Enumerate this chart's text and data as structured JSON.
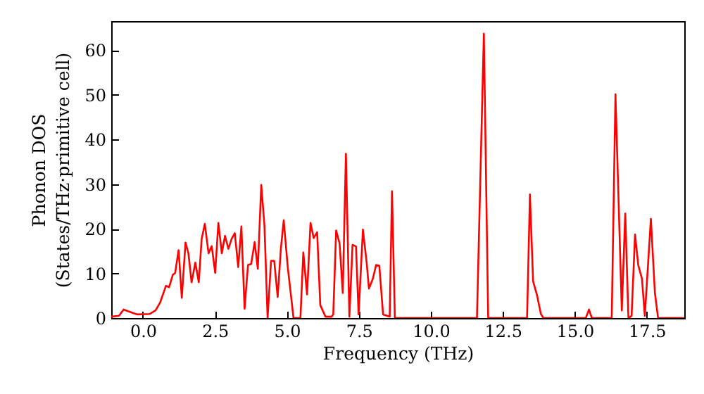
{
  "chart_data": {
    "type": "line",
    "xlabel": "Frequency (THz)",
    "ylabel": "Phonon DOS\n(States/THz·primitive cell)",
    "xlim": [
      -1.1,
      18.8
    ],
    "ylim": [
      0,
      66.5
    ],
    "xticks": [
      {
        "value": 0,
        "label": "0.0"
      },
      {
        "value": 2.5,
        "label": "2.5"
      },
      {
        "value": 5,
        "label": "5.0"
      },
      {
        "value": 7.5,
        "label": "7.5"
      },
      {
        "value": 10,
        "label": "10.0"
      },
      {
        "value": 12.5,
        "label": "12.5"
      },
      {
        "value": 15,
        "label": "15.0"
      },
      {
        "value": 17.5,
        "label": "17.5"
      }
    ],
    "yticks": [
      0,
      10,
      20,
      30,
      40,
      50,
      60
    ],
    "grid": false,
    "marker": "none",
    "line_style": "solid",
    "series": [
      {
        "color": "#ff0000",
        "x": [
          -1.1,
          -0.83,
          -0.67,
          -0.34,
          -0.18,
          0.23,
          0.44,
          0.6,
          0.8,
          0.91,
          1.04,
          1.12,
          1.24,
          1.35,
          1.48,
          1.58,
          1.69,
          1.82,
          1.94,
          2.04,
          2.15,
          2.28,
          2.39,
          2.51,
          2.62,
          2.74,
          2.85,
          2.97,
          3.08,
          3.19,
          3.31,
          3.42,
          3.53,
          3.65,
          3.76,
          3.88,
          3.99,
          4.11,
          4.22,
          4.33,
          4.45,
          4.56,
          4.68,
          4.79,
          4.89,
          5.03,
          5.23,
          5.47,
          5.57,
          5.7,
          5.82,
          5.93,
          6.05,
          6.16,
          6.34,
          6.55,
          6.61,
          6.71,
          6.83,
          6.94,
          7.05,
          7.17,
          7.28,
          7.4,
          7.49,
          7.64,
          7.77,
          7.85,
          7.98,
          8.1,
          8.21,
          8.34,
          8.57,
          8.65,
          8.75,
          11.6,
          11.84,
          11.99,
          13.34,
          13.44,
          13.55,
          13.69,
          13.82,
          13.91,
          15.38,
          15.49,
          15.59,
          16.28,
          16.41,
          16.63,
          16.75,
          16.86,
          16.97,
          17.09,
          17.2,
          17.33,
          17.43,
          17.64,
          17.78,
          17.89,
          18.8
        ],
        "values": [
          0.3,
          0.5,
          1.9,
          1.1,
          0.8,
          0.9,
          1.7,
          3.5,
          7.2,
          6.9,
          9.7,
          10.1,
          15.2,
          4.5,
          16.9,
          14.5,
          8,
          12.4,
          8,
          17.7,
          21.1,
          14.5,
          16.1,
          10.1,
          21.3,
          14.5,
          18.4,
          15.5,
          17.7,
          19,
          11.4,
          20.5,
          2.1,
          11.9,
          12.1,
          17,
          11,
          29.8,
          20.8,
          0,
          12.8,
          12.8,
          4.7,
          15.5,
          21.9,
          11.4,
          0,
          0,
          14.7,
          5.3,
          21.3,
          17.9,
          19.2,
          2.9,
          0.3,
          0.3,
          0.8,
          19.6,
          16.7,
          5.6,
          36.8,
          0.3,
          16.4,
          16,
          0.8,
          19.8,
          12.4,
          6.6,
          8.7,
          11.9,
          11.7,
          0.8,
          0.3,
          28.4,
          0,
          0,
          63.7,
          0,
          0,
          27.7,
          8.2,
          5,
          0.9,
          0,
          0,
          1.9,
          0,
          0,
          50.1,
          1.7,
          23.4,
          0,
          0.5,
          18.7,
          11.9,
          8.8,
          0.5,
          22.2,
          5.6,
          0,
          0
        ]
      }
    ]
  }
}
